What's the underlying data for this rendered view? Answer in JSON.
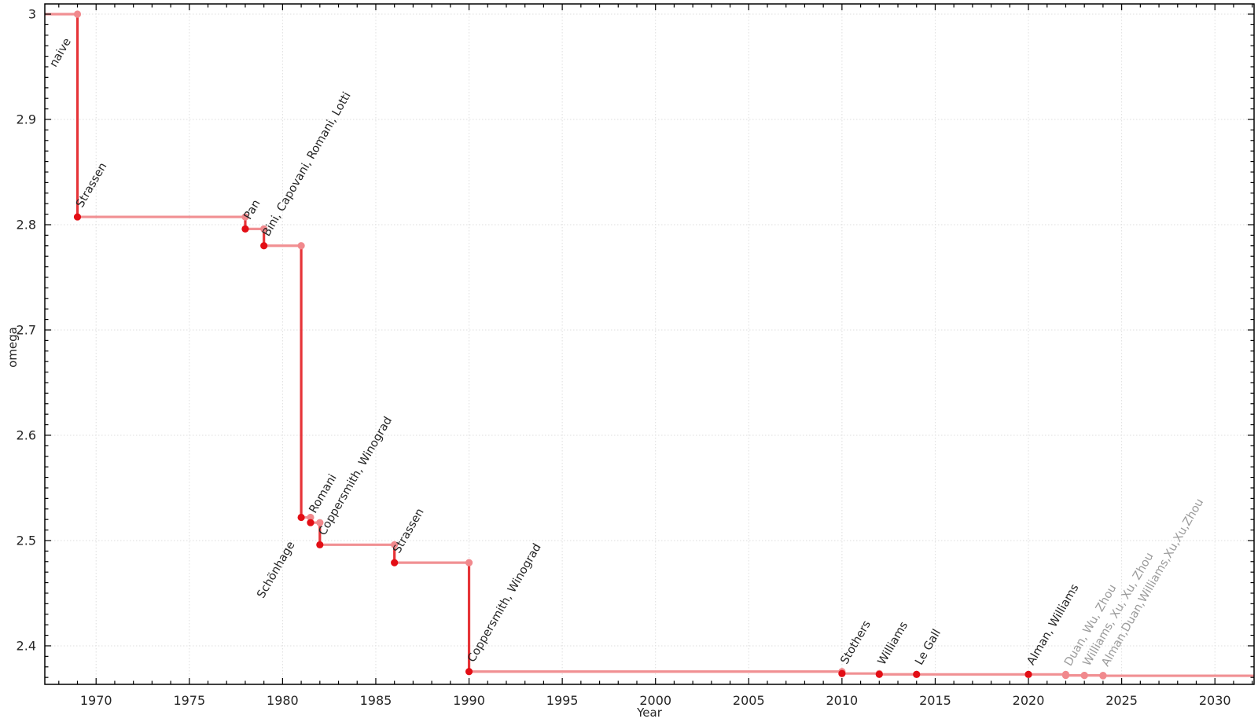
{
  "chart_data": {
    "type": "line",
    "subtype": "step-post",
    "title": "",
    "xlabel": "Year",
    "ylabel": "omega",
    "x_range": [
      1967.25,
      2032.1
    ],
    "y_range": [
      2.3634,
      3.0097
    ],
    "x_ticks": [
      1970,
      1975,
      1980,
      1985,
      1990,
      1995,
      2000,
      2005,
      2010,
      2015,
      2020,
      2025,
      2030
    ],
    "y_ticks": [
      3,
      2.9,
      2.8,
      2.7,
      2.6,
      2.5,
      2.4
    ],
    "y_tick_labels": [
      "3",
      "2.9",
      "2.8",
      "2.7",
      "2.6",
      "2.5",
      "2.4"
    ],
    "grid": {
      "show": true,
      "style": "dotted",
      "on_major_ticks": true
    },
    "legend": "none",
    "start": {
      "omega": 3,
      "label": "naive",
      "label_side": "below"
    },
    "points": [
      {
        "year": 1969,
        "omega": 2.8074,
        "label": "Strassen"
      },
      {
        "year": 1978,
        "omega": 2.796,
        "label": "Pan"
      },
      {
        "year": 1979,
        "omega": 2.78,
        "label": "Bini, Capovani, Romani, Lotti"
      },
      {
        "year": 1981,
        "omega": 2.522,
        "label": "Schönhage",
        "label_side": "below"
      },
      {
        "year": 1981.5,
        "omega": 2.517,
        "label": "Romani"
      },
      {
        "year": 1982,
        "omega": 2.496,
        "label": "Coppersmith, Winograd"
      },
      {
        "year": 1986,
        "omega": 2.479,
        "label": "Strassen"
      },
      {
        "year": 1990,
        "omega": 2.3755,
        "label": "Coppersmith, Winograd"
      },
      {
        "year": 2010,
        "omega": 2.3737,
        "label": "Stothers"
      },
      {
        "year": 2012,
        "omega": 2.3729,
        "label": "Williams"
      },
      {
        "year": 2014,
        "omega": 2.3728639,
        "label": "Le Gall"
      },
      {
        "year": 2020,
        "omega": 2.3728596,
        "label": "Alman, Williams"
      },
      {
        "year": 2022,
        "omega": 2.37188,
        "label": "Duan, Wu, Zhou",
        "provisional": true
      },
      {
        "year": 2023,
        "omega": 2.371866,
        "label": "Williams, Xu, Xu, Zhou",
        "provisional": true
      },
      {
        "year": 2024,
        "omega": 2.371552,
        "label": "Alman,Duan,Williams,Xu,Xu,Zhou",
        "provisional": true
      }
    ],
    "colors": {
      "line_light": "#f19093",
      "line_dark": "#e63438",
      "point_light": "#f1898d",
      "point_dark": "#e30e15",
      "grid": "#dedede",
      "axis": "#000000",
      "text": "#262626",
      "text_muted": "#9b9b9b"
    }
  }
}
